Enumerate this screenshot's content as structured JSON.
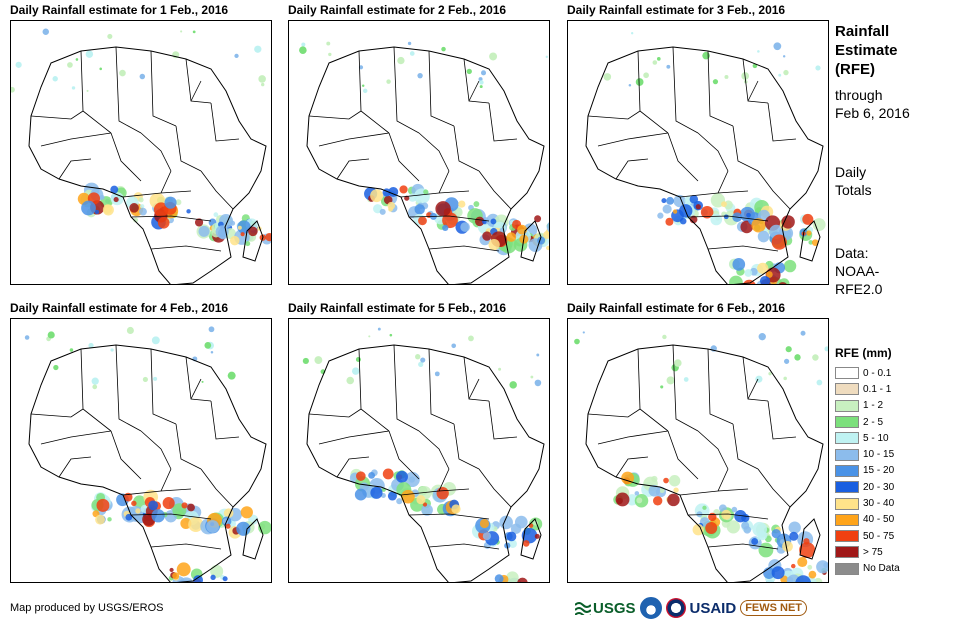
{
  "panels": [
    {
      "title": "Daily Rainfall estimate for 1 Feb., 2016"
    },
    {
      "title": "Daily Rainfall estimate for 2 Feb., 2016"
    },
    {
      "title": "Daily Rainfall estimate for 3 Feb., 2016"
    },
    {
      "title": "Daily Rainfall estimate for 4 Feb., 2016"
    },
    {
      "title": "Daily Rainfall estimate for 5 Feb., 2016"
    },
    {
      "title": "Daily Rainfall estimate for 6 Feb., 2016"
    }
  ],
  "side": {
    "title_line1": "Rainfall",
    "title_line2": "Estimate",
    "title_line3": "(RFE)",
    "through": "through",
    "date": "Feb 6, 2016",
    "daily": "Daily",
    "totals": "Totals",
    "data_label": "Data:",
    "noaa": "NOAA-",
    "rfe2": "RFE2.0"
  },
  "legend": {
    "title": "RFE (mm)",
    "items": [
      {
        "label": "0 - 0.1",
        "color": "#ffffff"
      },
      {
        "label": "0.1 - 1",
        "color": "#efdcbf"
      },
      {
        "label": "1 - 2",
        "color": "#c8f0c0"
      },
      {
        "label": "2 - 5",
        "color": "#7ce07c"
      },
      {
        "label": "5 - 10",
        "color": "#bff2f2"
      },
      {
        "label": "10 - 15",
        "color": "#8cbcec"
      },
      {
        "label": "15 - 20",
        "color": "#4a92e6"
      },
      {
        "label": "20 - 30",
        "color": "#1a5fe0"
      },
      {
        "label": "30 - 40",
        "color": "#ffe38a"
      },
      {
        "label": "40 - 50",
        "color": "#ffa41a"
      },
      {
        "label": "50 - 75",
        "color": "#f04010"
      },
      {
        "label": "> 75",
        "color": "#a01818"
      },
      {
        "label": "No Data",
        "color": "#8c8c8c"
      }
    ]
  },
  "credit": "Map produced by USGS/EROS",
  "logos": {
    "usgs": "USGS",
    "usaid": "USAID",
    "fews": "FEWS NET"
  }
}
